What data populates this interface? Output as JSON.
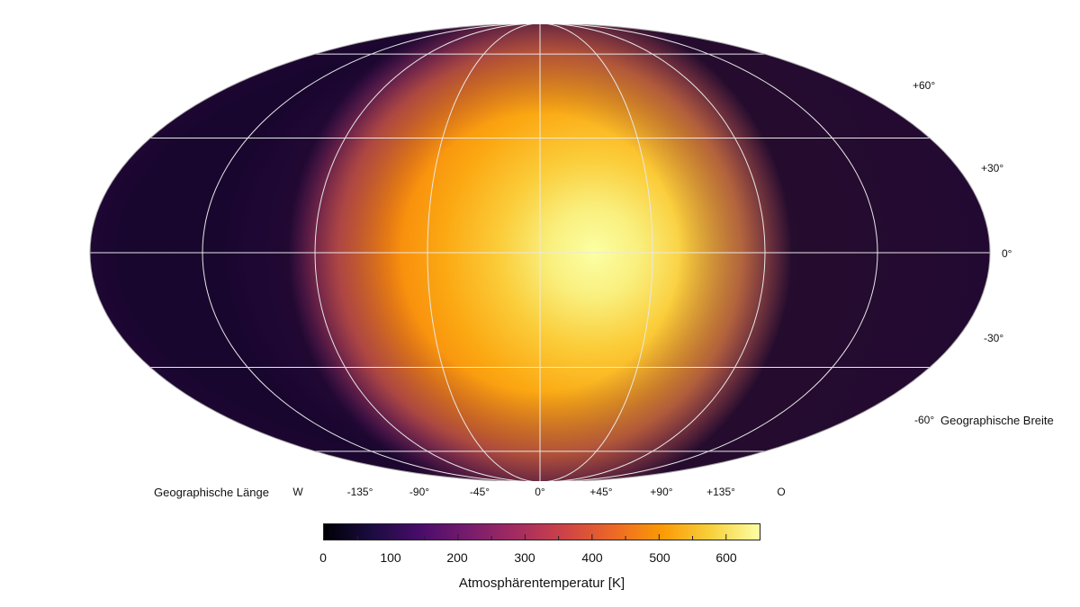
{
  "map": {
    "lat_axis_title": "Geographische Breite",
    "lon_axis_title": "Geographische Länge",
    "lat_labels": [
      {
        "lat": 60,
        "text": "+60°"
      },
      {
        "lat": 30,
        "text": "+30°"
      },
      {
        "lat": 0,
        "text": "0°"
      },
      {
        "lat": -30,
        "text": "-30°"
      },
      {
        "lat": -60,
        "text": "-60°"
      }
    ],
    "lon_labels": [
      {
        "lon": -180,
        "text": "W"
      },
      {
        "lon": -135,
        "text": "-135°"
      },
      {
        "lon": -90,
        "text": "-90°"
      },
      {
        "lon": -45,
        "text": "-45°"
      },
      {
        "lon": 0,
        "text": "0°"
      },
      {
        "lon": 45,
        "text": "+45°"
      },
      {
        "lon": 90,
        "text": "+90°"
      },
      {
        "lon": 135,
        "text": "+135°"
      },
      {
        "lon": 180,
        "text": "O"
      }
    ],
    "hotspot": {
      "lon": 0,
      "lat": 0,
      "temperature_K": 650
    },
    "nightside_center_lon": -150,
    "colors": {
      "background": "#ffffff",
      "graticule": "#e8e8e8",
      "outline": "#aaaaaa"
    }
  },
  "colorbar": {
    "title": "Atmosphärentemperatur [K]",
    "min": 0,
    "max": 650,
    "ticks": [
      0,
      100,
      200,
      300,
      400,
      500,
      600
    ],
    "tick_labels": [
      "0",
      "100",
      "200",
      "300",
      "400",
      "500",
      "600"
    ],
    "colormap": "inferno",
    "colormap_stops": [
      "#000004",
      "#1b0c41",
      "#4a0c6b",
      "#781c6d",
      "#a52c60",
      "#cf4446",
      "#ed6925",
      "#fb9b06",
      "#f7d13d",
      "#fcffa4"
    ]
  }
}
